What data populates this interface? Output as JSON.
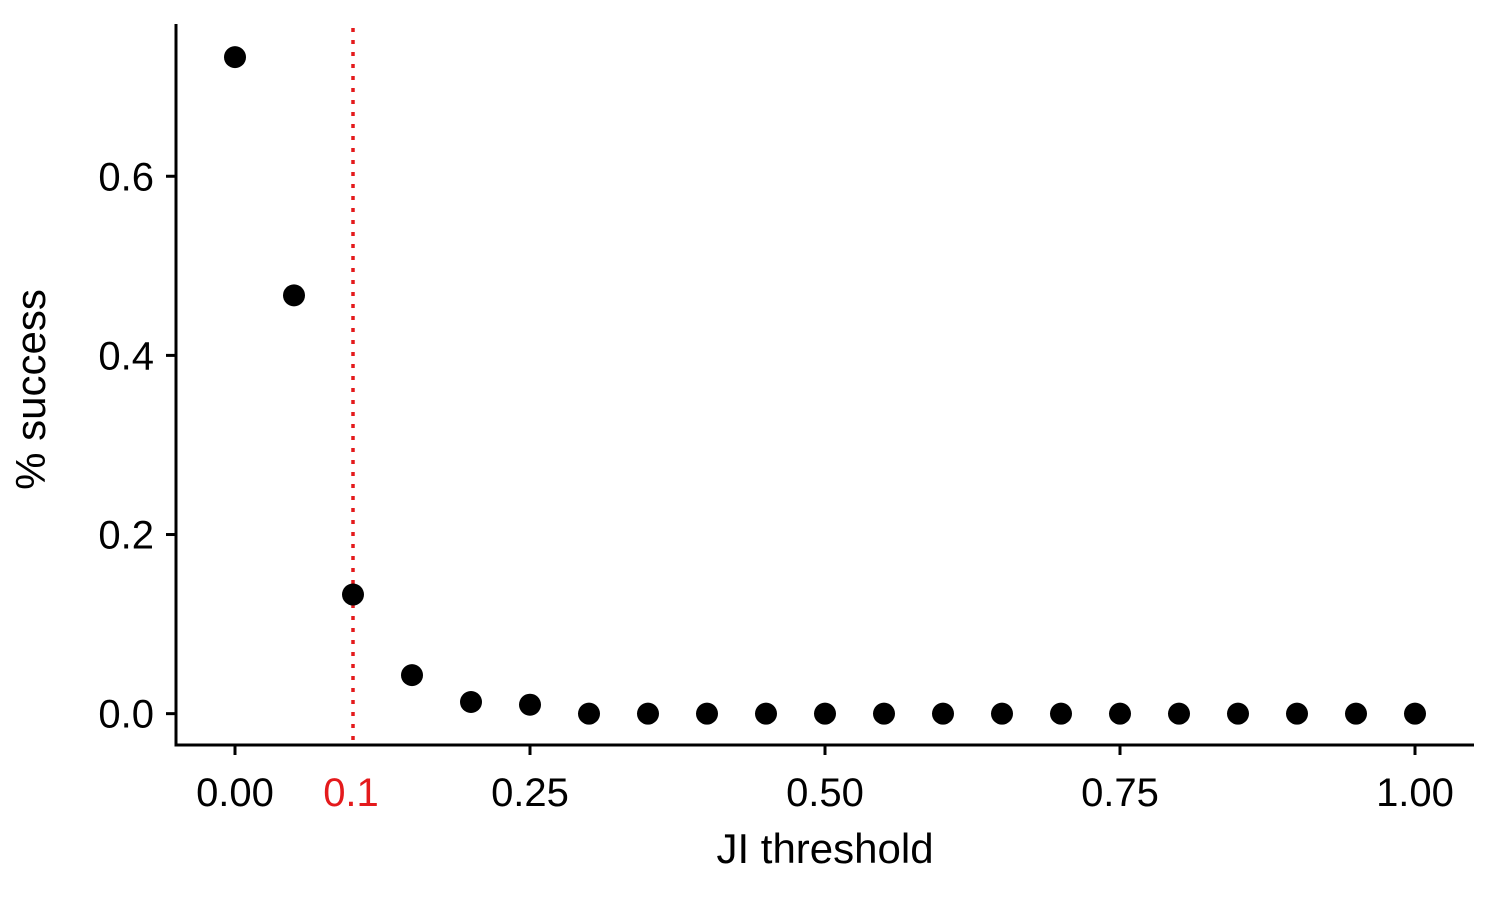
{
  "chart_data": {
    "type": "scatter",
    "xlabel": "JI threshold",
    "ylabel": "% success",
    "xlim": [
      -0.05,
      1.05
    ],
    "ylim": [
      -0.035,
      0.77
    ],
    "x_ticks": [
      {
        "value": 0.0,
        "label": "0.00"
      },
      {
        "value": 0.25,
        "label": "0.25"
      },
      {
        "value": 0.5,
        "label": "0.50"
      },
      {
        "value": 0.75,
        "label": "0.75"
      },
      {
        "value": 1.0,
        "label": "1.00"
      }
    ],
    "y_ticks": [
      {
        "value": 0.0,
        "label": "0.0"
      },
      {
        "value": 0.2,
        "label": "0.2"
      },
      {
        "value": 0.4,
        "label": "0.4"
      },
      {
        "value": 0.6,
        "label": "0.6"
      }
    ],
    "series": [
      {
        "x": [
          0.0,
          0.05,
          0.1,
          0.15,
          0.2,
          0.25,
          0.3,
          0.35,
          0.4,
          0.45,
          0.5,
          0.55,
          0.6,
          0.65,
          0.7,
          0.75,
          0.8,
          0.85,
          0.9,
          0.95,
          1.0
        ],
        "y": [
          0.733,
          0.467,
          0.133,
          0.043,
          0.013,
          0.01,
          0.0,
          0.0,
          0.0,
          0.0,
          0.0,
          0.0,
          0.0,
          0.0,
          0.0,
          0.0,
          0.0,
          0.0,
          0.0,
          0.0,
          0.0
        ]
      }
    ],
    "reference_line": {
      "x": 0.1,
      "label": "0.1",
      "style": "dotted"
    },
    "colors": {
      "points": "#000000",
      "reference": "#e41a1c",
      "axis": "#000000"
    },
    "grid": false
  }
}
